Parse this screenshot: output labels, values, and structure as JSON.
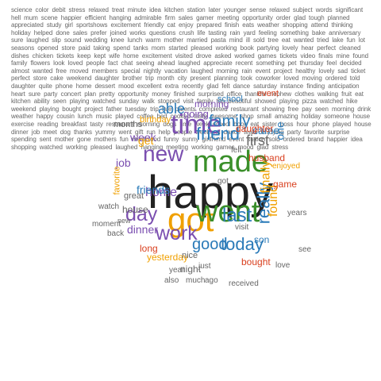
{
  "colors": {
    "purple": "#7b4fb0",
    "orange": "#f0a000",
    "green": "#3a8f2a",
    "blue": "#2a7ab8",
    "red": "#d9401f",
    "teal": "#2aa0a0",
    "gray": "#666666",
    "dark": "#222222",
    "lightblue": "#6fb7e0",
    "olive": "#8a9a20"
  },
  "big_words": [
    {
      "text": "happy",
      "color": "dark"
    },
    {
      "text": "got",
      "color": "orange"
    },
    {
      "text": "made",
      "color": "green"
    },
    {
      "text": "went",
      "color": "green"
    },
    {
      "text": "time",
      "color": "purple"
    },
    {
      "text": "new",
      "color": "purple"
    },
    {
      "text": "work",
      "color": "purple"
    },
    {
      "text": "day",
      "color": "purple"
    },
    {
      "text": "friend",
      "color": "blue"
    },
    {
      "text": "family",
      "color": "blue"
    },
    {
      "text": "last",
      "color": "blue"
    },
    {
      "text": "good",
      "color": "blue"
    },
    {
      "text": "today",
      "color": "blue"
    },
    {
      "text": "really",
      "color": "blue"
    },
    {
      "text": "able",
      "color": "blue"
    },
    {
      "text": "home",
      "color": "purple"
    },
    {
      "text": "friends",
      "color": "blue"
    },
    {
      "text": "found",
      "color": "orange"
    },
    {
      "text": "finally",
      "color": "orange"
    },
    {
      "text": "first",
      "color": "gray"
    },
    {
      "text": "week",
      "color": "purple"
    },
    {
      "text": "dinner",
      "color": "purple"
    },
    {
      "text": "job",
      "color": "purple"
    },
    {
      "text": "get",
      "color": "orange"
    },
    {
      "text": "one",
      "color": "blue"
    },
    {
      "text": "came",
      "color": "blue"
    },
    {
      "text": "daughter",
      "color": "red"
    },
    {
      "text": "husband",
      "color": "red"
    },
    {
      "text": "going",
      "color": "purple"
    },
    {
      "text": "son",
      "color": "blue"
    },
    {
      "text": "morning",
      "color": "purple"
    },
    {
      "text": "birthday",
      "color": "orange"
    },
    {
      "text": "yesterday",
      "color": "orange"
    },
    {
      "text": "house",
      "color": "gray"
    },
    {
      "text": "game",
      "color": "red"
    },
    {
      "text": "long",
      "color": "red"
    },
    {
      "text": "night",
      "color": "gray"
    },
    {
      "text": "bought",
      "color": "red"
    },
    {
      "text": "great",
      "color": "gray"
    },
    {
      "text": "favorite",
      "color": "orange"
    },
    {
      "text": "months",
      "color": "gray"
    },
    {
      "text": "school",
      "color": "blue"
    },
    {
      "text": "event",
      "color": "red"
    },
    {
      "text": "enjoyed",
      "color": "orange"
    },
    {
      "text": "felt",
      "color": "gray"
    },
    {
      "text": "nice",
      "color": "gray"
    },
    {
      "text": "moment",
      "color": "gray"
    },
    {
      "text": "back",
      "color": "gray"
    },
    {
      "text": "much",
      "color": "gray"
    },
    {
      "text": "ago",
      "color": "gray"
    },
    {
      "text": "also",
      "color": "gray"
    },
    {
      "text": "just",
      "color": "gray"
    },
    {
      "text": "received",
      "color": "gray"
    },
    {
      "text": "visit",
      "color": "gray"
    },
    {
      "text": "years",
      "color": "gray"
    },
    {
      "text": "watch",
      "color": "gray"
    },
    {
      "text": "year",
      "color": "gray"
    },
    {
      "text": "see",
      "color": "gray"
    },
    {
      "text": "love",
      "color": "gray"
    },
    {
      "text": "got",
      "color": "gray"
    },
    {
      "text": "new",
      "color": "gray"
    }
  ],
  "filler_text": "science color debit stress relaxed treat minute idea kitchen station later younger sense relaxed subject words significant hell mum scene happier efficient hanging admirable firm sales gamer meeting opportunity order glad tough planned appreciated study girl sportshows excitement friendly cat enjoy prepared finish eats weather shopping attend thinking holiday helped done sales prefer joined works questions crush life tasting rain yard feeling something bake anniversary sure laughed slip sound wedding knee lunch warm mother married pasta mind ill sold tree eat wanted tried lake fun lot seasons opened store paid taking spend tanks mom started pleased working book partying lovely hear perfect cleaned dishes chicken tickets keep kept wife home excitement visited drove asked worked games tickets video finals mine found family flowers look loved people fact chat seeing ahead laughed appreciate recent something pet thursday feel decided almost wanted free moved members special nightly vacation laughed morning rain event project healthy lovely sad ticket perfect store cake weekend daughter brother trip month city present planning took coworker loved moving ordered told daughter quite phone home dessert mood excellent extra recently glad felt dance saturday instance finding anticipation heart sure party concert plan pretty opportunity money finished surprised office thankful nephew clothes walking fruit eat kitchen ability seen playing watched sunday walk stopped visit family trip beautiful showed playing pizza watched hike weekend playing bought project father tuesday trip late parents completed restaurant showing free pay seen morning drink weather happy cousin lunch music played coffee bed cooked taste awesome shop small amazing holiday someone house exercise reading breakfast tasty restaurant morning dogs time week school book eat sister boss hour phone played house dinner job meet dog thanks yummy went gift run help people weekend dance team enjoying party favorite surprise spending sent mother gone mothers fun meal food funny sunny girlfriend event station sold ordered brand happier idea shopping watched working pleased laughed hanging meeting working games mood glad stress",
  "filler_color": "gray"
}
